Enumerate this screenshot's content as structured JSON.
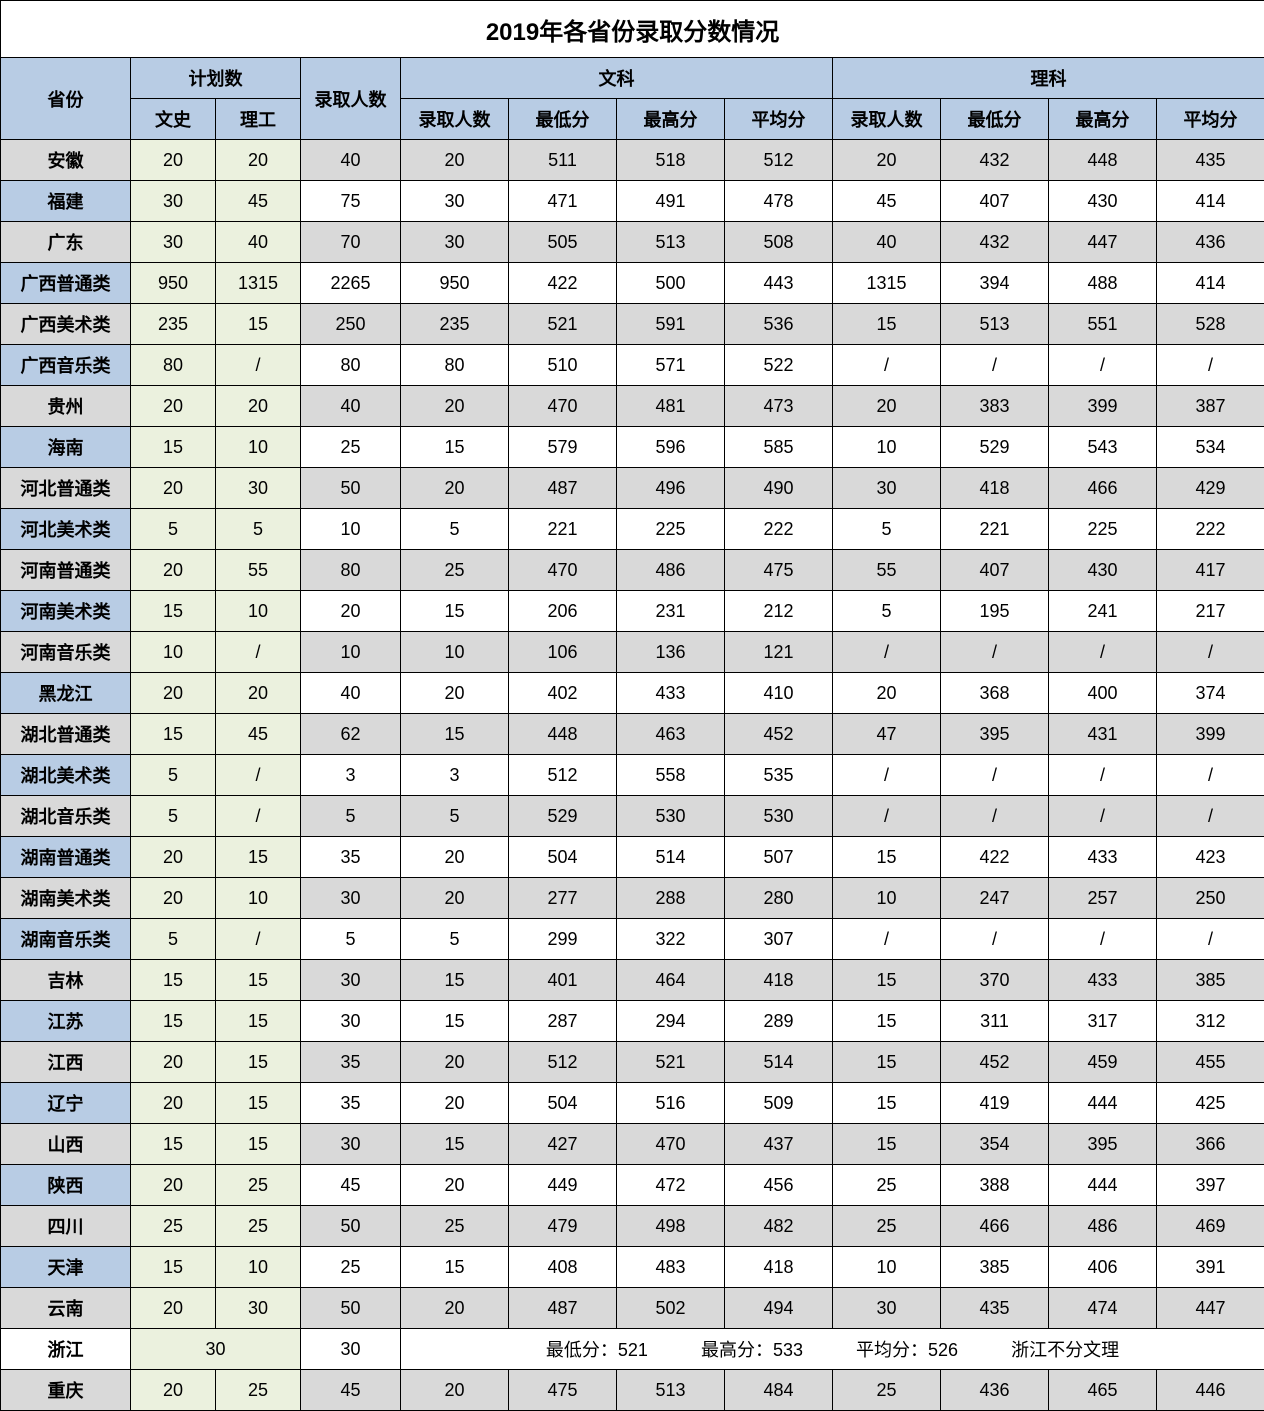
{
  "title": "2019年各省份录取分数情况",
  "headers": {
    "province": "省份",
    "plan": "计划数",
    "plan_ws": "文史",
    "plan_lg": "理工",
    "admit": "录取人数",
    "wen": "文科",
    "li": "理科",
    "sub_admit": "录取人数",
    "sub_min": "最低分",
    "sub_max": "最高分",
    "sub_avg": "平均分"
  },
  "zhejiang": {
    "name": "浙江",
    "plan": "30",
    "admit": "30",
    "min_label": "最低分：521",
    "max_label": "最高分：533",
    "avg_label": "平均分：526",
    "note": "浙江不分文理"
  },
  "chongqing": {
    "name": "重庆",
    "plan_ws": "20",
    "plan_lg": "25",
    "admit": "45",
    "w_adm": "20",
    "w_min": "475",
    "w_max": "513",
    "w_avg": "484",
    "l_adm": "25",
    "l_min": "436",
    "l_max": "465",
    "l_avg": "446"
  },
  "rows": [
    {
      "shade": true,
      "name": "安徽",
      "p1": "20",
      "p2": "20",
      "adm": "40",
      "wa": "20",
      "wmin": "511",
      "wmax": "518",
      "wavg": "512",
      "la": "20",
      "lmin": "432",
      "lmax": "448",
      "lavg": "435"
    },
    {
      "shade": false,
      "name": "福建",
      "p1": "30",
      "p2": "45",
      "adm": "75",
      "wa": "30",
      "wmin": "471",
      "wmax": "491",
      "wavg": "478",
      "la": "45",
      "lmin": "407",
      "lmax": "430",
      "lavg": "414"
    },
    {
      "shade": true,
      "name": "广东",
      "p1": "30",
      "p2": "40",
      "adm": "70",
      "wa": "30",
      "wmin": "505",
      "wmax": "513",
      "wavg": "508",
      "la": "40",
      "lmin": "432",
      "lmax": "447",
      "lavg": "436"
    },
    {
      "shade": false,
      "name": "广西普通类",
      "p1": "950",
      "p2": "1315",
      "adm": "2265",
      "wa": "950",
      "wmin": "422",
      "wmax": "500",
      "wavg": "443",
      "la": "1315",
      "lmin": "394",
      "lmax": "488",
      "lavg": "414"
    },
    {
      "shade": true,
      "name": "广西美术类",
      "p1": "235",
      "p2": "15",
      "adm": "250",
      "wa": "235",
      "wmin": "521",
      "wmax": "591",
      "wavg": "536",
      "la": "15",
      "lmin": "513",
      "lmax": "551",
      "lavg": "528"
    },
    {
      "shade": false,
      "name": "广西音乐类",
      "p1": "80",
      "p2": "/",
      "adm": "80",
      "wa": "80",
      "wmin": "510",
      "wmax": "571",
      "wavg": "522",
      "la": "/",
      "lmin": "/",
      "lmax": "/",
      "lavg": "/"
    },
    {
      "shade": true,
      "name": "贵州",
      "p1": "20",
      "p2": "20",
      "adm": "40",
      "wa": "20",
      "wmin": "470",
      "wmax": "481",
      "wavg": "473",
      "la": "20",
      "lmin": "383",
      "lmax": "399",
      "lavg": "387"
    },
    {
      "shade": false,
      "name": "海南",
      "p1": "15",
      "p2": "10",
      "adm": "25",
      "wa": "15",
      "wmin": "579",
      "wmax": "596",
      "wavg": "585",
      "la": "10",
      "lmin": "529",
      "lmax": "543",
      "lavg": "534"
    },
    {
      "shade": true,
      "name": "河北普通类",
      "p1": "20",
      "p2": "30",
      "adm": "50",
      "wa": "20",
      "wmin": "487",
      "wmax": "496",
      "wavg": "490",
      "la": "30",
      "lmin": "418",
      "lmax": "466",
      "lavg": "429"
    },
    {
      "shade": false,
      "name": "河北美术类",
      "p1": "5",
      "p2": "5",
      "adm": "10",
      "wa": "5",
      "wmin": "221",
      "wmax": "225",
      "wavg": "222",
      "la": "5",
      "lmin": "221",
      "lmax": "225",
      "lavg": "222"
    },
    {
      "shade": true,
      "name": "河南普通类",
      "p1": "20",
      "p2": "55",
      "adm": "80",
      "wa": "25",
      "wmin": "470",
      "wmax": "486",
      "wavg": "475",
      "la": "55",
      "lmin": "407",
      "lmax": "430",
      "lavg": "417"
    },
    {
      "shade": false,
      "name": "河南美术类",
      "p1": "15",
      "p2": "10",
      "adm": "20",
      "wa": "15",
      "wmin": "206",
      "wmax": "231",
      "wavg": "212",
      "la": "5",
      "lmin": "195",
      "lmax": "241",
      "lavg": "217"
    },
    {
      "shade": true,
      "name": "河南音乐类",
      "p1": "10",
      "p2": "/",
      "adm": "10",
      "wa": "10",
      "wmin": "106",
      "wmax": "136",
      "wavg": "121",
      "la": "/",
      "lmin": "/",
      "lmax": "/",
      "lavg": "/"
    },
    {
      "shade": false,
      "name": "黑龙江",
      "p1": "20",
      "p2": "20",
      "adm": "40",
      "wa": "20",
      "wmin": "402",
      "wmax": "433",
      "wavg": "410",
      "la": "20",
      "lmin": "368",
      "lmax": "400",
      "lavg": "374"
    },
    {
      "shade": true,
      "name": "湖北普通类",
      "p1": "15",
      "p2": "45",
      "adm": "62",
      "wa": "15",
      "wmin": "448",
      "wmax": "463",
      "wavg": "452",
      "la": "47",
      "lmin": "395",
      "lmax": "431",
      "lavg": "399"
    },
    {
      "shade": false,
      "name": "湖北美术类",
      "p1": "5",
      "p2": "/",
      "adm": "3",
      "wa": "3",
      "wmin": "512",
      "wmax": "558",
      "wavg": "535",
      "la": "/",
      "lmin": "/",
      "lmax": "/",
      "lavg": "/"
    },
    {
      "shade": true,
      "name": "湖北音乐类",
      "p1": "5",
      "p2": "/",
      "adm": "5",
      "wa": "5",
      "wmin": "529",
      "wmax": "530",
      "wavg": "530",
      "la": "/",
      "lmin": "/",
      "lmax": "/",
      "lavg": "/"
    },
    {
      "shade": false,
      "name": "湖南普通类",
      "p1": "20",
      "p2": "15",
      "adm": "35",
      "wa": "20",
      "wmin": "504",
      "wmax": "514",
      "wavg": "507",
      "la": "15",
      "lmin": "422",
      "lmax": "433",
      "lavg": "423"
    },
    {
      "shade": true,
      "name": "湖南美术类",
      "p1": "20",
      "p2": "10",
      "adm": "30",
      "wa": "20",
      "wmin": "277",
      "wmax": "288",
      "wavg": "280",
      "la": "10",
      "lmin": "247",
      "lmax": "257",
      "lavg": "250"
    },
    {
      "shade": false,
      "name": "湖南音乐类",
      "p1": "5",
      "p2": "/",
      "adm": "5",
      "wa": "5",
      "wmin": "299",
      "wmax": "322",
      "wavg": "307",
      "la": "/",
      "lmin": "/",
      "lmax": "/",
      "lavg": "/"
    },
    {
      "shade": true,
      "name": "吉林",
      "p1": "15",
      "p2": "15",
      "adm": "30",
      "wa": "15",
      "wmin": "401",
      "wmax": "464",
      "wavg": "418",
      "la": "15",
      "lmin": "370",
      "lmax": "433",
      "lavg": "385"
    },
    {
      "shade": false,
      "name": "江苏",
      "p1": "15",
      "p2": "15",
      "adm": "30",
      "wa": "15",
      "wmin": "287",
      "wmax": "294",
      "wavg": "289",
      "la": "15",
      "lmin": "311",
      "lmax": "317",
      "lavg": "312"
    },
    {
      "shade": true,
      "name": "江西",
      "p1": "20",
      "p2": "15",
      "adm": "35",
      "wa": "20",
      "wmin": "512",
      "wmax": "521",
      "wavg": "514",
      "la": "15",
      "lmin": "452",
      "lmax": "459",
      "lavg": "455"
    },
    {
      "shade": false,
      "name": "辽宁",
      "p1": "20",
      "p2": "15",
      "adm": "35",
      "wa": "20",
      "wmin": "504",
      "wmax": "516",
      "wavg": "509",
      "la": "15",
      "lmin": "419",
      "lmax": "444",
      "lavg": "425"
    },
    {
      "shade": true,
      "name": "山西",
      "p1": "15",
      "p2": "15",
      "adm": "30",
      "wa": "15",
      "wmin": "427",
      "wmax": "470",
      "wavg": "437",
      "la": "15",
      "lmin": "354",
      "lmax": "395",
      "lavg": "366"
    },
    {
      "shade": false,
      "name": "陕西",
      "p1": "20",
      "p2": "25",
      "adm": "45",
      "wa": "20",
      "wmin": "449",
      "wmax": "472",
      "wavg": "456",
      "la": "25",
      "lmin": "388",
      "lmax": "444",
      "lavg": "397"
    },
    {
      "shade": true,
      "name": "四川",
      "p1": "25",
      "p2": "25",
      "adm": "50",
      "wa": "25",
      "wmin": "479",
      "wmax": "498",
      "wavg": "482",
      "la": "25",
      "lmin": "466",
      "lmax": "486",
      "lavg": "469"
    },
    {
      "shade": false,
      "name": "天津",
      "p1": "15",
      "p2": "10",
      "adm": "25",
      "wa": "15",
      "wmin": "408",
      "wmax": "483",
      "wavg": "418",
      "la": "10",
      "lmin": "385",
      "lmax": "406",
      "lavg": "391"
    },
    {
      "shade": true,
      "name": "云南",
      "p1": "20",
      "p2": "30",
      "adm": "50",
      "wa": "20",
      "wmin": "487",
      "wmax": "502",
      "wavg": "494",
      "la": "30",
      "lmin": "435",
      "lmax": "474",
      "lavg": "447"
    }
  ]
}
